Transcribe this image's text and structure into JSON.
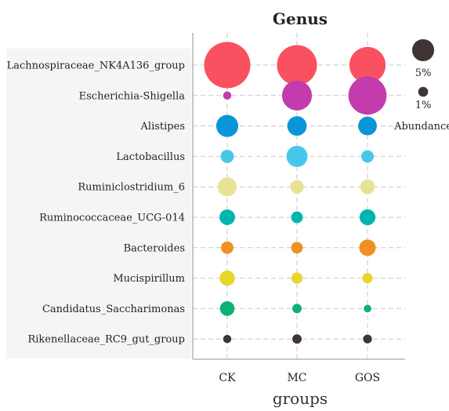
{
  "chart_data": {
    "type": "scatter",
    "title": "Genus",
    "xlabel": "groups",
    "ylabel": "",
    "categories": [
      "CK",
      "MC",
      "GOS"
    ],
    "genera": [
      "Lachnospiraceae_NK4A136_group",
      "Escherichia-Shigella",
      "Alistipes",
      "Lactobacillus",
      "Ruminiclostridium_6",
      "Ruminococcaceae_UCG-014",
      "Bacteroides",
      "Mucispirillum",
      "Candidatus_Saccharimonas",
      "Rikenellaceae_RC9_gut_group"
    ],
    "colors": [
      "#f9515f",
      "#c43bae",
      "#0a95db",
      "#47c8eb",
      "#e9e296",
      "#00b5b0",
      "#ef9022",
      "#e6d82b",
      "#0eb074",
      "#3f3535"
    ],
    "abundance": [
      [
        22.0,
        16.5,
        13.5
      ],
      [
        0.7,
        9.2,
        15.0
      ],
      [
        5.0,
        3.9,
        3.6
      ],
      [
        1.8,
        4.6,
        1.6
      ],
      [
        3.7,
        1.9,
        2.2
      ],
      [
        2.5,
        1.4,
        2.6
      ],
      [
        1.6,
        1.4,
        2.8
      ],
      [
        2.4,
        1.3,
        1.1
      ],
      [
        2.2,
        0.9,
        0.6
      ],
      [
        0.7,
        0.9,
        0.8
      ]
    ],
    "legend": {
      "title": "Abundance",
      "entries": [
        {
          "label": "5%",
          "value": 5.0
        },
        {
          "label": "1%",
          "value": 1.0
        }
      ],
      "color": "#3f3535",
      "position": "right"
    },
    "grid": true,
    "axis_color": "#aaaaaa",
    "grid_color": "#c8c8c8",
    "label_panel_color": "#f5f5f5"
  }
}
